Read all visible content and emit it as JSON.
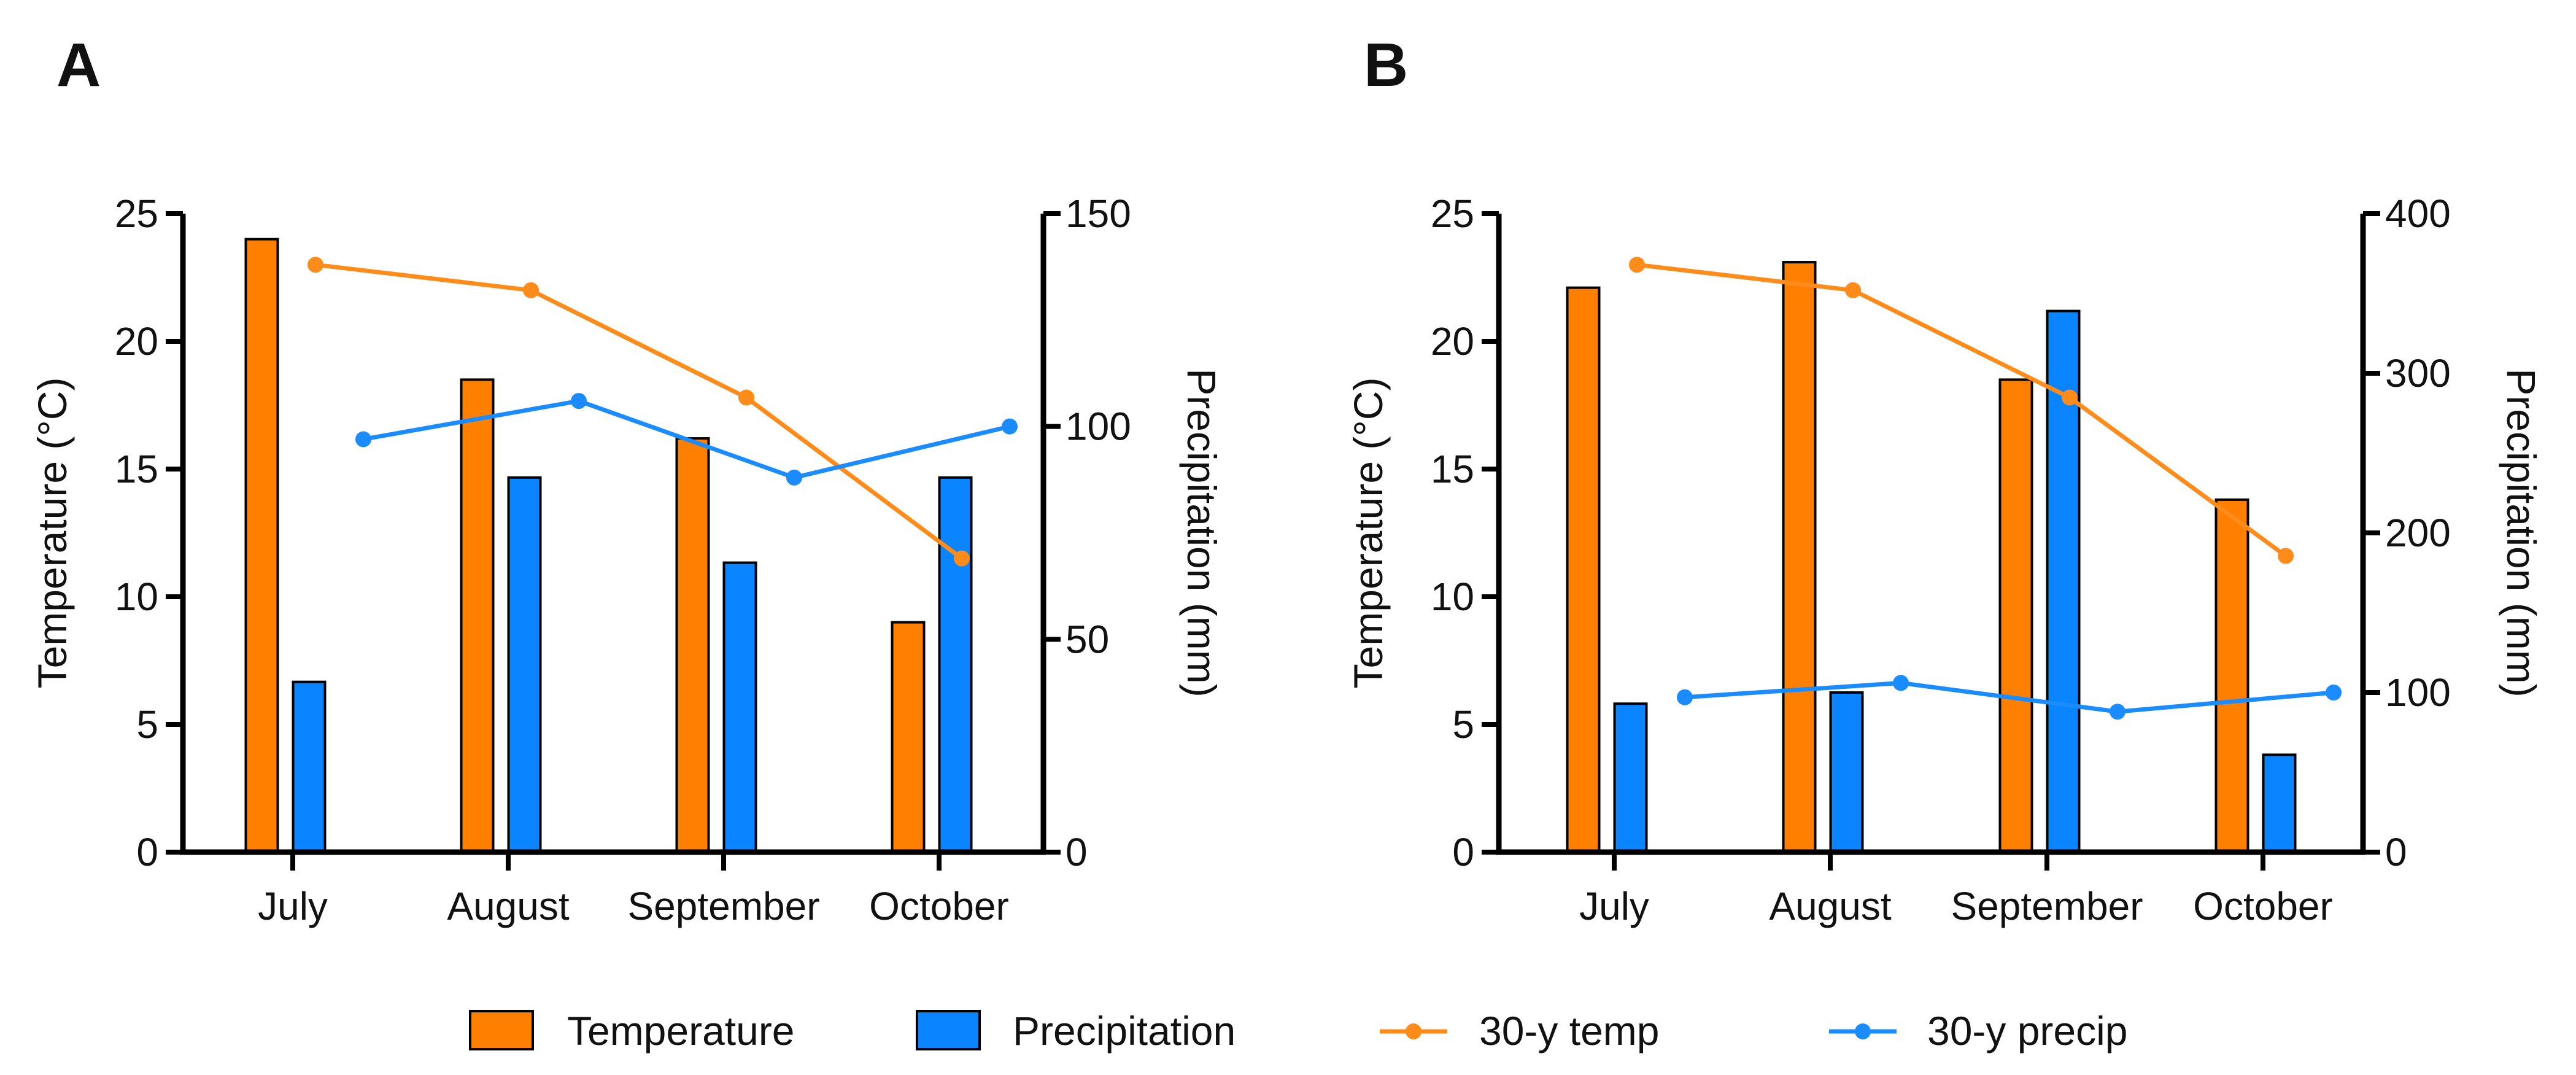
{
  "colors": {
    "temperature_bar": "#FF8000",
    "precipitation_bar": "#0A84FF",
    "temp_line": "#FF8C1A",
    "precip_line": "#1A8CFF",
    "axis": "#000000"
  },
  "legend": {
    "temperature": "Temperature",
    "precipitation": "Precipitation",
    "temp_30y": "30-y temp",
    "precip_30y": "30-y precip"
  },
  "chart_data": [
    {
      "panel": "A",
      "type": "bar",
      "categories": [
        "July",
        "August",
        "September",
        "October"
      ],
      "ylabel": "Temperature (°C)",
      "y2label": "Precipitation (mm)",
      "ylim": [
        0,
        25
      ],
      "yticks": [
        0,
        5,
        10,
        15,
        20,
        25
      ],
      "y2lim": [
        0,
        150
      ],
      "y2ticks": [
        0,
        50,
        100,
        150
      ],
      "series": [
        {
          "name": "Temperature",
          "kind": "bar",
          "axis": "left",
          "values": [
            24.0,
            18.5,
            16.2,
            9.0
          ]
        },
        {
          "name": "Precipitation",
          "kind": "bar",
          "axis": "right",
          "values": [
            40,
            88,
            68,
            88
          ]
        },
        {
          "name": "30-y temp",
          "kind": "line",
          "axis": "left",
          "values": [
            23.0,
            22.0,
            17.8,
            11.5
          ]
        },
        {
          "name": "30-y precip",
          "kind": "line",
          "axis": "right",
          "values": [
            97,
            106,
            88,
            100
          ]
        }
      ]
    },
    {
      "panel": "B",
      "type": "bar",
      "categories": [
        "July",
        "August",
        "September",
        "October"
      ],
      "ylabel": "Temperature (°C)",
      "y2label": "Precipitation (mm)",
      "ylim": [
        0,
        25
      ],
      "yticks": [
        0,
        5,
        10,
        15,
        20,
        25
      ],
      "y2lim": [
        0,
        400
      ],
      "y2ticks": [
        0,
        100,
        200,
        300,
        400
      ],
      "series": [
        {
          "name": "Temperature",
          "kind": "bar",
          "axis": "left",
          "values": [
            22.1,
            23.1,
            18.5,
            13.8
          ]
        },
        {
          "name": "Precipitation",
          "kind": "bar",
          "axis": "right",
          "values": [
            93,
            100,
            339,
            61
          ]
        },
        {
          "name": "30-y temp",
          "kind": "line",
          "axis": "left",
          "values": [
            23.0,
            22.0,
            17.8,
            11.6
          ]
        },
        {
          "name": "30-y precip",
          "kind": "line",
          "axis": "right",
          "values": [
            97,
            106,
            88,
            100
          ]
        }
      ]
    }
  ]
}
